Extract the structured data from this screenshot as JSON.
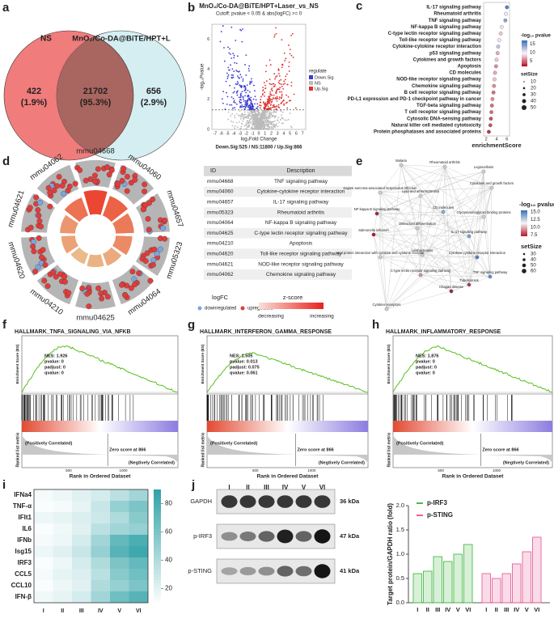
{
  "panel_labels": [
    "a",
    "b",
    "c",
    "d",
    "e",
    "f",
    "g",
    "h",
    "i",
    "j"
  ],
  "venn": {
    "left_label": "NS",
    "right_label": "MnO₂/Co-DA@BiTE/HPT+L",
    "left": "422",
    "left_pct": "(1.9%)",
    "overlap": "21702",
    "overlap_pct": "(95.3%)",
    "right": "656",
    "right_pct": "(2.9%)"
  },
  "volcano": {
    "title": "MnO₂/Co-DA@BiTE/HPT+Laser_vs_NS",
    "cutoff": "Cutoff: pvalue < 0.05 & abs(logFC) >= 0",
    "ylabel": "-log₁₀Pvalue",
    "xlabel": "log₂Fold Change",
    "legend_title": "regulate",
    "legend": [
      "Down.Sig",
      "NS",
      "Up.Sig"
    ],
    "summary": "Down.Sig:525 / NS:11800 / Up.Sig:866",
    "xlim": [
      -7.5,
      7.5
    ],
    "xticks": [
      -7,
      -6,
      -5,
      -4,
      -3,
      -2,
      -1,
      0,
      1,
      2,
      3,
      4,
      5,
      6,
      7
    ],
    "ylim": [
      0,
      7
    ],
    "yticks": [
      0,
      2,
      4,
      6
    ]
  },
  "enrichment": {
    "pathways": [
      "IL-17 signaling pathway",
      "Rheumatoid arthritis",
      "TNF signaling pathway",
      "NF-kappa B signaling pathway",
      "C-type lectin receptor signaling pathway",
      "Toll-like receptor signaling pathway",
      "Cytokine-cytokine receptor interaction",
      "p53 signaling pathway",
      "Cytokines and growth factors",
      "Apoptosis",
      "CD molecules",
      "NOD-like receptor signaling pathway",
      "Chemokine signaling pathway",
      "B cell receptor signaling pathway",
      "PD-L1 expression and PD-1 checkpoint pathway in cancer",
      "TGF-beta signaling pathway",
      "T cell receptor signaling pathway",
      "Cytosolic DNA-sensing pathway",
      "Natural killer cell mediated cytotoxicity",
      "Protein phosphatases and associated proteins"
    ],
    "scores": [
      6.0,
      5.8,
      5.7,
      5.0,
      4.8,
      4.5,
      4.3,
      4.2,
      4.0,
      3.9,
      3.7,
      3.6,
      3.5,
      3.4,
      3.2,
      3.1,
      3.0,
      2.9,
      2.8,
      2.5
    ],
    "neglog10p": [
      16,
      10,
      14,
      9,
      8,
      9,
      12,
      7,
      8,
      6,
      7,
      8,
      6,
      5,
      6,
      5,
      5,
      4,
      4,
      3
    ],
    "xlim": [
      1.5,
      6.5
    ],
    "xticks": [
      2,
      4,
      6
    ],
    "xlabel": "enrichmentScore",
    "color_title": "-log₁₀ pvalue",
    "clim": [
      2,
      17
    ],
    "color_ticks": [
      5,
      10,
      15
    ],
    "size_title": "setSize",
    "size_ticks": [
      10,
      20,
      30,
      40,
      50
    ]
  },
  "circos": {
    "sectors": [
      "mmu04668",
      "mmu04060",
      "mmu04657",
      "mmu05323",
      "mmu04064",
      "mmu04625",
      "mmu04210",
      "mmu04620",
      "mmu04621",
      "mmu04062"
    ],
    "logfc_title": "logFC",
    "down": "downregulated",
    "up": "upregulated",
    "z_title": "z-score",
    "decreasing": "decreasing",
    "increasing": "increasing"
  },
  "table": {
    "header": [
      "ID",
      "Description"
    ],
    "rows": [
      [
        "mmu04668",
        "TNF signaling pathway"
      ],
      [
        "mmu04060",
        "Cytokine-cytokine receptor interaction"
      ],
      [
        "mmu04657",
        "IL-17 signaling pathway"
      ],
      [
        "mmu05323",
        "Rheumatoid arthritis"
      ],
      [
        "mmu04064",
        "NF-kappa B signaling pathway"
      ],
      [
        "mmu04625",
        "C-type lectin receptor signaling pathway"
      ],
      [
        "mmu04210",
        "Apoptosis"
      ],
      [
        "mmu04620",
        "Toll-like receptor signaling pathway"
      ],
      [
        "mmu04621",
        "NOD-like receptor signaling pathway"
      ],
      [
        "mmu04062",
        "Chemokine signaling pathway"
      ]
    ]
  },
  "network": {
    "nodes": [
      "Malaria",
      "Rheumatoid arthritis",
      "Legionellosis",
      "Cytokines and growth factors",
      "Kaposi sarcoma-associated herpesvirus infection",
      "Lipid and atherosclerosis",
      "CD molecules",
      "NF-kappa B signaling pathway",
      "Osteoclast differentiation",
      "Glycosaminoglycan binding proteins",
      "Salmonella infection",
      "IL-17 signaling pathway",
      "Leishmaniasis",
      "Viral protein interaction with cytokine and cytokine receptor",
      "Cytokine-cytokine receptor interaction",
      "C-type lectin receptor signaling pathway",
      "Chagas disease",
      "Tuberculosis",
      "TNF signaling pathway",
      "Cytokine receptors"
    ],
    "color_title": "-log₁₀ pvalue",
    "color_ticks": [
      "15.0",
      "12.5",
      "10.0",
      "7.5"
    ],
    "size_title": "setSize",
    "size_ticks": [
      "30",
      "40",
      "50",
      "60"
    ]
  },
  "gsea": {
    "panels": [
      {
        "title": "HALLMARK_TNFA_SIGNALING_VIA_NFKB",
        "stats": [
          "NES: 1.926",
          "pvalue: 0",
          "padjust: 0",
          "qvalue: 0"
        ]
      },
      {
        "title": "HALLMARK_INTERFERON_GAMMA_RESPONSE",
        "stats": [
          "NES: 1.505",
          "pvalue: 0.013",
          "padjust: 0.075",
          "qvalue: 0.061"
        ]
      },
      {
        "title": "HALLMARK_INFLAMMATORY_RESPONSE",
        "stats": [
          "NES: 1.876",
          "pvalue: 0",
          "padjust: 0",
          "qvalue: 0"
        ]
      }
    ],
    "ylabel": "Enrichment Score (ES)",
    "metric_label": "Ranked list metric",
    "pos": "(Positively Correlated)",
    "neg": "(Negtively Correlated)",
    "zero": "Zero score at 866",
    "xlabel": "Rank in Ordered Dataset",
    "xticks": [
      "500",
      "1000"
    ]
  },
  "heatmap": {
    "genes": [
      "IFNa4",
      "TNF-α",
      "IFIt1",
      "IL6",
      "IFNb",
      "Isg15",
      "IRF3",
      "CCL5",
      "CCL10",
      "IFN-β"
    ],
    "groups": [
      "I",
      "II",
      "III",
      "IV",
      "V",
      "VI"
    ],
    "values": [
      [
        12,
        15,
        20,
        25,
        35,
        45
      ],
      [
        10,
        12,
        18,
        30,
        50,
        60
      ],
      [
        15,
        18,
        22,
        28,
        40,
        55
      ],
      [
        10,
        14,
        20,
        35,
        45,
        50
      ],
      [
        12,
        15,
        25,
        45,
        70,
        80
      ],
      [
        15,
        20,
        30,
        50,
        75,
        85
      ],
      [
        10,
        15,
        25,
        40,
        60,
        70
      ],
      [
        12,
        18,
        22,
        35,
        55,
        65
      ],
      [
        10,
        15,
        20,
        40,
        50,
        60
      ],
      [
        14,
        18,
        25,
        45,
        65,
        75
      ]
    ],
    "clim": [
      10,
      90
    ],
    "colorbar_ticks": [
      20,
      40,
      60,
      80
    ]
  },
  "blot": {
    "groups": [
      "I",
      "II",
      "III",
      "IV",
      "V",
      "VI"
    ],
    "rows": [
      "GAPDH",
      "p-IRF3",
      "p-STING"
    ],
    "sizes": [
      "36 kDa",
      "47 kDa",
      "41 kDa"
    ]
  },
  "chart_data": {
    "type": "bar",
    "ylabel": "Target protein/GAPDH ratio (fold)",
    "categories": [
      "I",
      "II",
      "III",
      "IV",
      "V",
      "VI"
    ],
    "series": [
      {
        "name": "p-IRF3",
        "color": "#4cbb4c",
        "values": [
          0.6,
          0.65,
          0.95,
          0.85,
          1.0,
          1.2
        ]
      },
      {
        "name": "p-STING",
        "color": "#e8609a",
        "values": [
          0.6,
          0.5,
          0.6,
          0.8,
          1.05,
          1.35
        ]
      }
    ],
    "ylim": [
      0,
      2
    ],
    "yticks": [
      {
        "value": 0,
        "label": "0.0"
      },
      0.5,
      {
        "value": 1,
        "label": "1.0"
      },
      1.5,
      {
        "value": 2,
        "label": "2.0"
      }
    ]
  }
}
